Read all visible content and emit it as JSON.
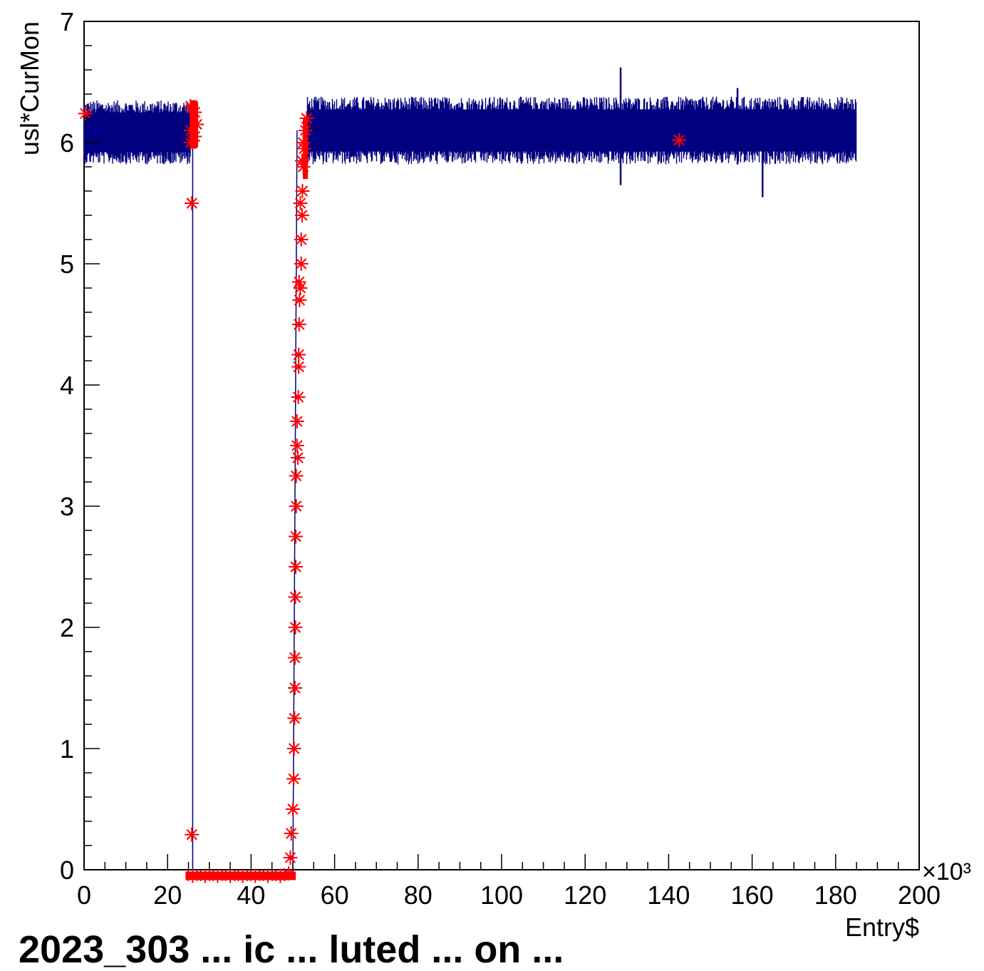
{
  "chart_data": {
    "type": "scatter",
    "title": "",
    "xlabel": "Entry$",
    "ylabel": "usl*CurMon",
    "x_multiplier": "×10³",
    "xlim": [
      0,
      200
    ],
    "ylim": [
      0,
      7
    ],
    "x_ticks": [
      "0",
      "20",
      "40",
      "60",
      "80",
      "100",
      "120",
      "140",
      "160",
      "180",
      "200"
    ],
    "y_ticks": [
      "0",
      "1",
      "2",
      "3",
      "4",
      "5",
      "6",
      "7"
    ],
    "grid": false,
    "bottom_caption": "2023_303 ... ic ... luted ... on ... ",
    "colors": {
      "band": "#000080",
      "markers": "#ff0000",
      "frame": "#000000"
    },
    "series": [
      {
        "kind": "band",
        "segments": [
          {
            "x_start": 0,
            "x_end": 25.5,
            "y_low": 5.82,
            "y_high": 6.35
          },
          {
            "x_start": 53.5,
            "x_end": 185,
            "y_low": 5.82,
            "y_high": 6.38
          }
        ],
        "spikes": [
          {
            "x": 128.5,
            "y_low": 5.65,
            "y_high": 6.62
          },
          {
            "x": 156.5,
            "y_low": 5.82,
            "y_high": 6.45
          },
          {
            "x": 162.5,
            "y_low": 5.55,
            "y_high": 6.3
          }
        ]
      },
      {
        "kind": "line",
        "points": [
          [
            26,
            6.1
          ],
          [
            26,
            -0.05
          ],
          [
            50,
            -0.05
          ],
          [
            51,
            6.1
          ]
        ]
      },
      {
        "kind": "markers",
        "points": [
          [
            0.3,
            6.24
          ],
          [
            142.5,
            6.02
          ],
          [
            25.8,
            5.5
          ],
          [
            25.8,
            0.29
          ],
          [
            25.5,
            6.0
          ],
          [
            25.5,
            6.3
          ],
          [
            26.5,
            6.05
          ],
          [
            26.5,
            6.25
          ],
          [
            27,
            6.15
          ],
          [
            25.6,
            6.1
          ],
          [
            26,
            -0.05
          ],
          [
            29,
            -0.05
          ],
          [
            32,
            -0.05
          ],
          [
            35,
            -0.05
          ],
          [
            38,
            -0.05
          ],
          [
            41,
            -0.05
          ],
          [
            44,
            -0.05
          ],
          [
            47,
            -0.05
          ],
          [
            49,
            -0.03
          ],
          [
            49.4,
            0.1
          ],
          [
            49.6,
            0.3
          ],
          [
            50.0,
            0.5
          ],
          [
            50.2,
            0.75
          ],
          [
            50.3,
            1.0
          ],
          [
            50.4,
            1.25
          ],
          [
            50.5,
            1.5
          ],
          [
            50.5,
            1.75
          ],
          [
            50.6,
            2.0
          ],
          [
            50.6,
            2.25
          ],
          [
            50.7,
            2.5
          ],
          [
            50.7,
            2.75
          ],
          [
            50.8,
            3.0
          ],
          [
            50.8,
            3.25
          ],
          [
            51.0,
            3.5
          ],
          [
            51.2,
            3.4
          ],
          [
            51.0,
            3.7
          ],
          [
            51.3,
            3.9
          ],
          [
            51.4,
            4.15
          ],
          [
            51.4,
            4.25
          ],
          [
            51.5,
            4.5
          ],
          [
            51.6,
            4.7
          ],
          [
            51.8,
            4.8
          ],
          [
            52.0,
            5.0
          ],
          [
            52.0,
            5.2
          ],
          [
            52.2,
            5.4
          ],
          [
            52.3,
            5.6
          ],
          [
            52.5,
            5.8
          ],
          [
            52.7,
            5.95
          ],
          [
            53.0,
            6.1
          ],
          [
            53.3,
            6.2
          ],
          [
            52.5,
            6.0
          ],
          [
            52.2,
            5.85
          ],
          [
            51.8,
            5.5
          ],
          [
            51.5,
            4.85
          ]
        ]
      }
    ]
  }
}
